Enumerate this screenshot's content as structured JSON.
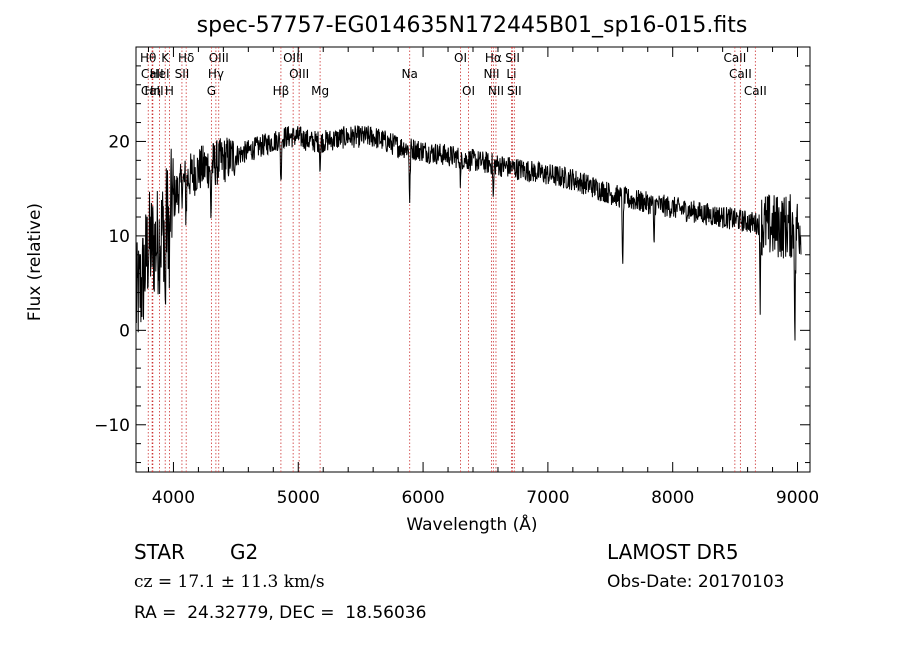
{
  "chart_data": {
    "type": "line",
    "title": "spec-57757-EG014635N172445B01_sp16-015.fits",
    "xlabel": "Wavelength (Å)",
    "ylabel": "Flux (relative)",
    "xlim": [
      3700,
      9100
    ],
    "ylim": [
      -15,
      30
    ],
    "xticks": [
      4000,
      5000,
      6000,
      7000,
      8000,
      9000
    ],
    "xtick_labels": [
      "4000",
      "5000",
      "6000",
      "7000",
      "8000",
      "9000"
    ],
    "yticks": [
      -10,
      0,
      10,
      20
    ],
    "ytick_labels": [
      "−10",
      "0",
      "10",
      "20"
    ],
    "grid": false,
    "line_color": "#000000",
    "marker_color": "#cc3333",
    "continuum": [
      [
        3700,
        3
      ],
      [
        3750,
        5
      ],
      [
        3800,
        9
      ],
      [
        3850,
        9
      ],
      [
        3900,
        10
      ],
      [
        3950,
        12
      ],
      [
        4000,
        14
      ],
      [
        4100,
        16
      ],
      [
        4200,
        17
      ],
      [
        4300,
        17.5
      ],
      [
        4400,
        18
      ],
      [
        4500,
        18.5
      ],
      [
        4600,
        19
      ],
      [
        4700,
        19.5
      ],
      [
        4800,
        20
      ],
      [
        4900,
        20.5
      ],
      [
        5000,
        20.5
      ],
      [
        5100,
        20
      ],
      [
        5200,
        20
      ],
      [
        5400,
        20.5
      ],
      [
        5600,
        20.5
      ],
      [
        5800,
        19.5
      ],
      [
        6000,
        19
      ],
      [
        6200,
        18.5
      ],
      [
        6400,
        18
      ],
      [
        6600,
        17.5
      ],
      [
        6800,
        17
      ],
      [
        7000,
        16.5
      ],
      [
        7200,
        16
      ],
      [
        7400,
        15
      ],
      [
        7600,
        14
      ],
      [
        7800,
        13.5
      ],
      [
        8000,
        13
      ],
      [
        8200,
        12.5
      ],
      [
        8400,
        12
      ],
      [
        8600,
        11.5
      ],
      [
        8800,
        11
      ],
      [
        9000,
        11
      ]
    ],
    "absorption_features": [
      {
        "x": 3934,
        "depth": 10
      },
      {
        "x": 3968,
        "depth": 8
      },
      {
        "x": 4101,
        "depth": 4
      },
      {
        "x": 4300,
        "depth": 6
      },
      {
        "x": 4861,
        "depth": 5
      },
      {
        "x": 5175,
        "depth": 3
      },
      {
        "x": 5893,
        "depth": 6
      },
      {
        "x": 6300,
        "depth": 3
      },
      {
        "x": 6563,
        "depth": 4
      },
      {
        "x": 7600,
        "depth": 8
      },
      {
        "x": 7850,
        "depth": 5
      },
      {
        "x": 8700,
        "depth": 7
      },
      {
        "x": 8980,
        "depth": 12
      }
    ],
    "line_markers": [
      {
        "label": "Hθ",
        "x": 3798,
        "row": 1
      },
      {
        "label": "CaII",
        "x": 3830,
        "row": 2
      },
      {
        "label": "CaII",
        "x": 3830,
        "row": 3
      },
      {
        "label": "Hη",
        "x": 3835,
        "row": 3
      },
      {
        "label": "K",
        "x": 3934,
        "row": 1
      },
      {
        "label": "HeI",
        "x": 3889,
        "row": 2
      },
      {
        "label": "H",
        "x": 3968,
        "row": 3
      },
      {
        "label": "Hδ",
        "x": 4102,
        "row": 1
      },
      {
        "label": "SII",
        "x": 4068,
        "row": 2
      },
      {
        "label": "OIII",
        "x": 4363,
        "row": 1
      },
      {
        "label": "Hγ",
        "x": 4340,
        "row": 2
      },
      {
        "label": "G",
        "x": 4304,
        "row": 3
      },
      {
        "label": "Hβ",
        "x": 4861,
        "row": 3
      },
      {
        "label": "OIII",
        "x": 4959,
        "row": 1
      },
      {
        "label": "OIII",
        "x": 5007,
        "row": 2
      },
      {
        "label": "Mg",
        "x": 5175,
        "row": 3
      },
      {
        "label": "Na",
        "x": 5893,
        "row": 2
      },
      {
        "label": "OI",
        "x": 6300,
        "row": 1
      },
      {
        "label": "OI",
        "x": 6364,
        "row": 3
      },
      {
        "label": "Hα",
        "x": 6563,
        "row": 1
      },
      {
        "label": "NII",
        "x": 6548,
        "row": 2
      },
      {
        "label": "NII",
        "x": 6584,
        "row": 3
      },
      {
        "label": "SII",
        "x": 6717,
        "row": 1
      },
      {
        "label": "Li",
        "x": 6708,
        "row": 2
      },
      {
        "label": "SII",
        "x": 6731,
        "row": 3
      },
      {
        "label": "CaII",
        "x": 8498,
        "row": 1
      },
      {
        "label": "CaII",
        "x": 8542,
        "row": 2
      },
      {
        "label": "CaII",
        "x": 8662,
        "row": 3
      }
    ]
  },
  "info": {
    "object_class": "STAR",
    "subclass": "G2",
    "survey": "LAMOST DR5",
    "cz": "cz = 17.1 ± 11.3 km/s",
    "obs_date": "Obs-Date: 20170103",
    "coords": "RA =  24.32779, DEC =  18.56036"
  }
}
